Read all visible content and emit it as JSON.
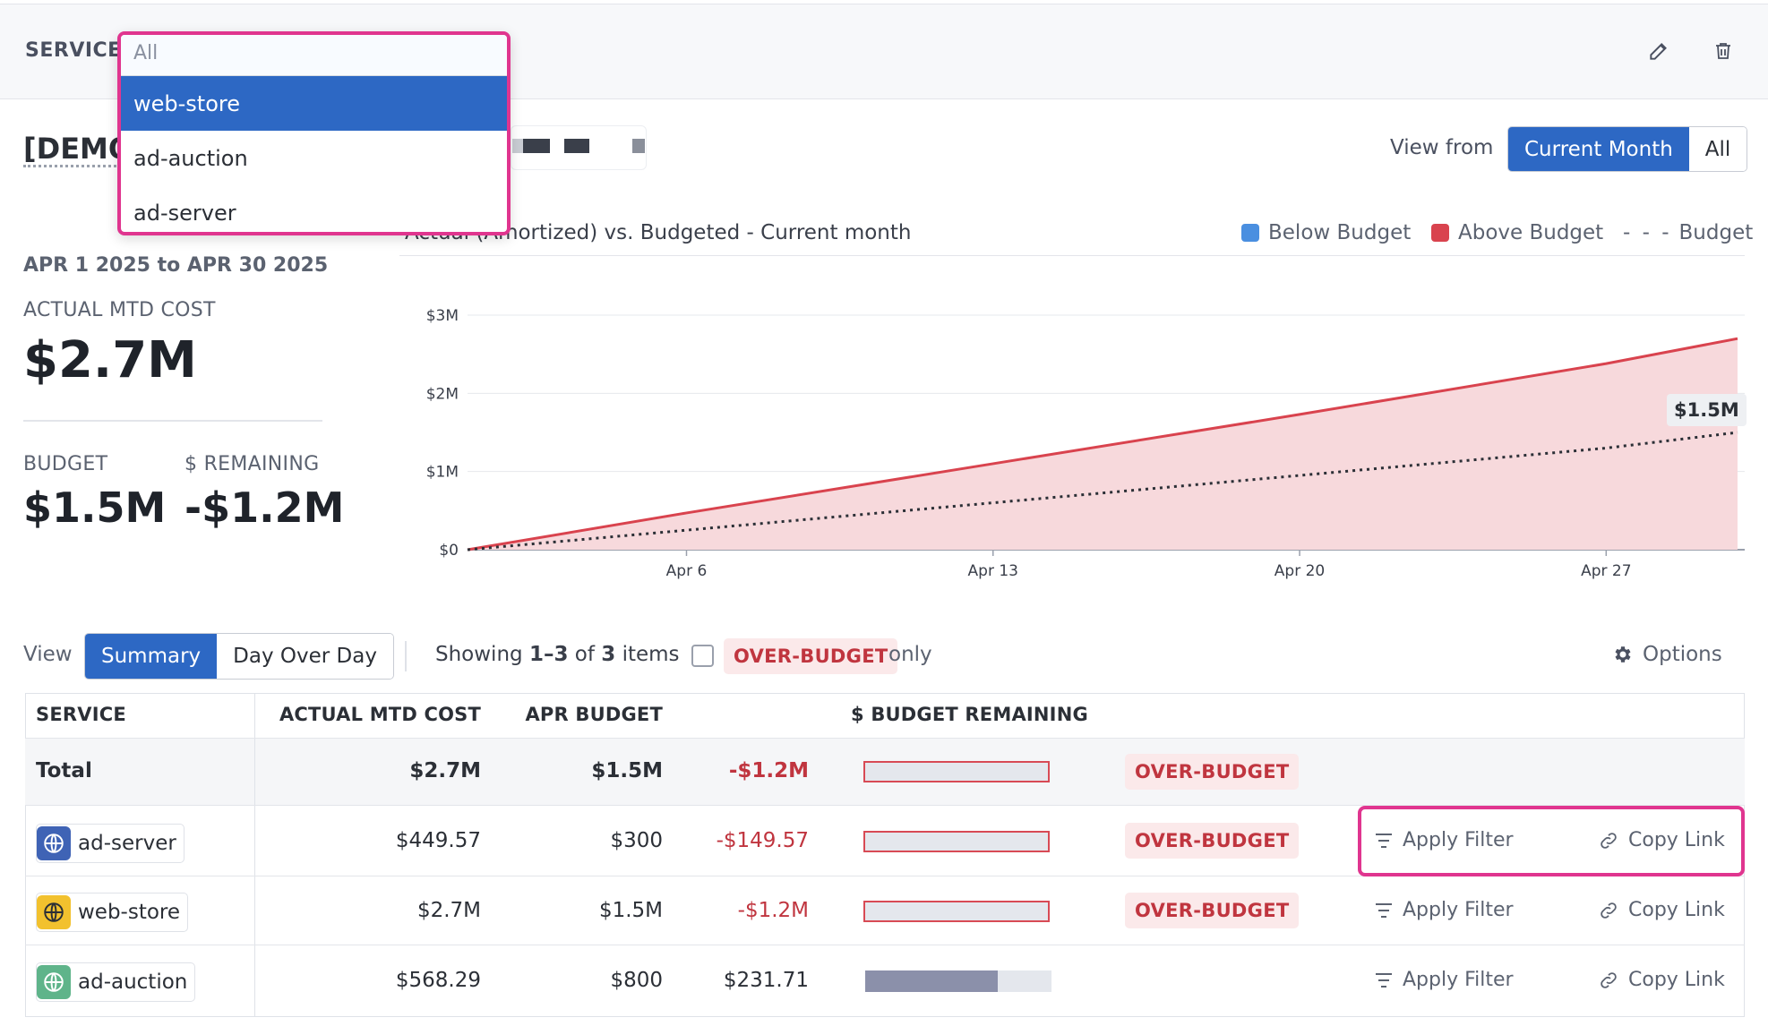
{
  "filter": {
    "service_label": "SERVICE",
    "search_placeholder": "All",
    "options": [
      "web-store",
      "ad-auction",
      "ad-server"
    ],
    "selected": "web-store"
  },
  "header": {
    "title": "[DEMO",
    "view_from_label": "View from",
    "view_from_options": [
      "Current Month",
      "All"
    ],
    "view_from_selected": "Current Month"
  },
  "kpis": {
    "date_range": "APR 1 2025 to APR 30 2025",
    "actual_label": "ACTUAL MTD COST",
    "actual_value": "$2.7M",
    "budget_label": "BUDGET",
    "budget_value": "$1.5M",
    "remaining_label": "$ REMAINING",
    "remaining_value": "-$1.2M"
  },
  "chart": {
    "title": "Actual (Amortized) vs. Budgeted - Current month",
    "legend": {
      "below": "Below Budget",
      "above": "Above Budget",
      "budget": "Budget"
    },
    "budget_marker": "$1.5M"
  },
  "chart_data": {
    "type": "area",
    "title": "Actual (Amortized) vs. Budgeted - Current month",
    "x_ticks": [
      "Apr 6",
      "Apr 13",
      "Apr 20",
      "Apr 27"
    ],
    "y_ticks": [
      "$0",
      "$1M",
      "$2M",
      "$3M"
    ],
    "ylim": [
      0,
      3000000
    ],
    "x": [
      1,
      6,
      13,
      20,
      27,
      30
    ],
    "series": [
      {
        "name": "Above Budget",
        "values": [
          0,
          470000,
          1100000,
          1730000,
          2380000,
          2700000
        ]
      },
      {
        "name": "Budget",
        "values": [
          0,
          250000,
          600000,
          950000,
          1300000,
          1500000
        ]
      }
    ],
    "grid": true,
    "legend_position": "top-right",
    "colors": {
      "above": "#d9434e",
      "above_fill": "#f7d9dc",
      "below": "#4a8fe0",
      "budget": "#2b2f36"
    }
  },
  "controls": {
    "view_label": "View",
    "view_tabs": [
      "Summary",
      "Day Over Day"
    ],
    "view_selected": "Summary",
    "showing_prefix": "Showing",
    "showing_range": "1–3",
    "showing_of": "of",
    "showing_total": "3",
    "showing_suffix": "items",
    "over_budget_badge": "OVER-BUDGET",
    "only_label": "only",
    "options_label": "Options"
  },
  "table": {
    "headers": {
      "service": "SERVICE",
      "actual": "ACTUAL MTD COST",
      "budget": "APR BUDGET",
      "remaining": "$ BUDGET REMAINING"
    },
    "total": {
      "label": "Total",
      "actual": "$2.7M",
      "budget": "$1.5M",
      "remaining": "-$1.2M",
      "status": "OVER-BUDGET",
      "used_fraction": 1.0
    },
    "rows": [
      {
        "service": "ad-server",
        "actual": "$449.57",
        "budget": "$300",
        "remaining": "-$149.57",
        "status": "OVER-BUDGET",
        "used_fraction": 1.0,
        "apply": "Apply Filter",
        "copy": "Copy Link"
      },
      {
        "service": "web-store",
        "actual": "$2.7M",
        "budget": "$1.5M",
        "remaining": "-$1.2M",
        "status": "OVER-BUDGET",
        "used_fraction": 1.0,
        "apply": "Apply Filter",
        "copy": "Copy Link"
      },
      {
        "service": "ad-auction",
        "actual": "$568.29",
        "budget": "$800",
        "remaining": "$231.71",
        "status": "",
        "used_fraction": 0.71,
        "apply": "Apply Filter",
        "copy": "Copy Link"
      }
    ]
  }
}
